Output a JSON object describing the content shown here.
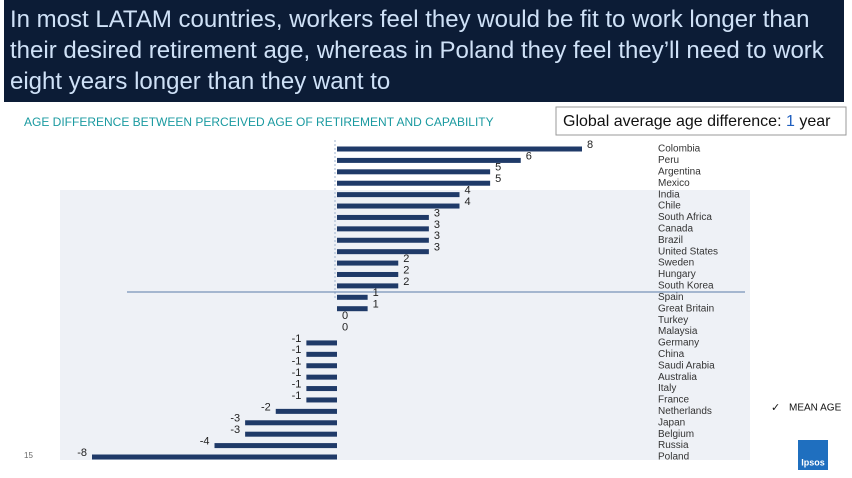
{
  "header": {
    "title": "In most LATAM countries, workers feel they would be fit to work longer than their desired retirement age, whereas in Poland they feel they’ll need to work eight years longer than they want to"
  },
  "chart_data": {
    "type": "bar",
    "orientation": "horizontal",
    "title": "AGE DIFFERENCE BETWEEN PERCEIVED AGE OF RETIREMENT AND CAPABILITY",
    "annotation": {
      "text": "Global average age difference:",
      "value": "1",
      "unit": "year"
    },
    "legend": "MEAN AGE",
    "color": "#1f3a68",
    "categories": [
      "Colombia",
      "Peru",
      "Argentina",
      "Mexico",
      "India",
      "Chile",
      "South Africa",
      "Canada",
      "Brazil",
      "United States",
      "Sweden",
      "Hungary",
      "South Korea",
      "Spain",
      "Great Britain",
      "Turkey",
      "Malaysia",
      "Germany",
      "China",
      "Saudi Arabia",
      "Australia",
      "Italy",
      "France",
      "Netherlands",
      "Japan",
      "Belgium",
      "Russia",
      "Poland"
    ],
    "values": [
      8,
      6,
      5,
      5,
      4,
      4,
      3,
      3,
      3,
      3,
      2,
      2,
      2,
      1,
      1,
      0,
      0,
      -1,
      -1,
      -1,
      -1,
      -1,
      -1,
      -2,
      -3,
      -3,
      -4,
      -8
    ]
  },
  "page_number": "15",
  "logo": "Ipsos"
}
